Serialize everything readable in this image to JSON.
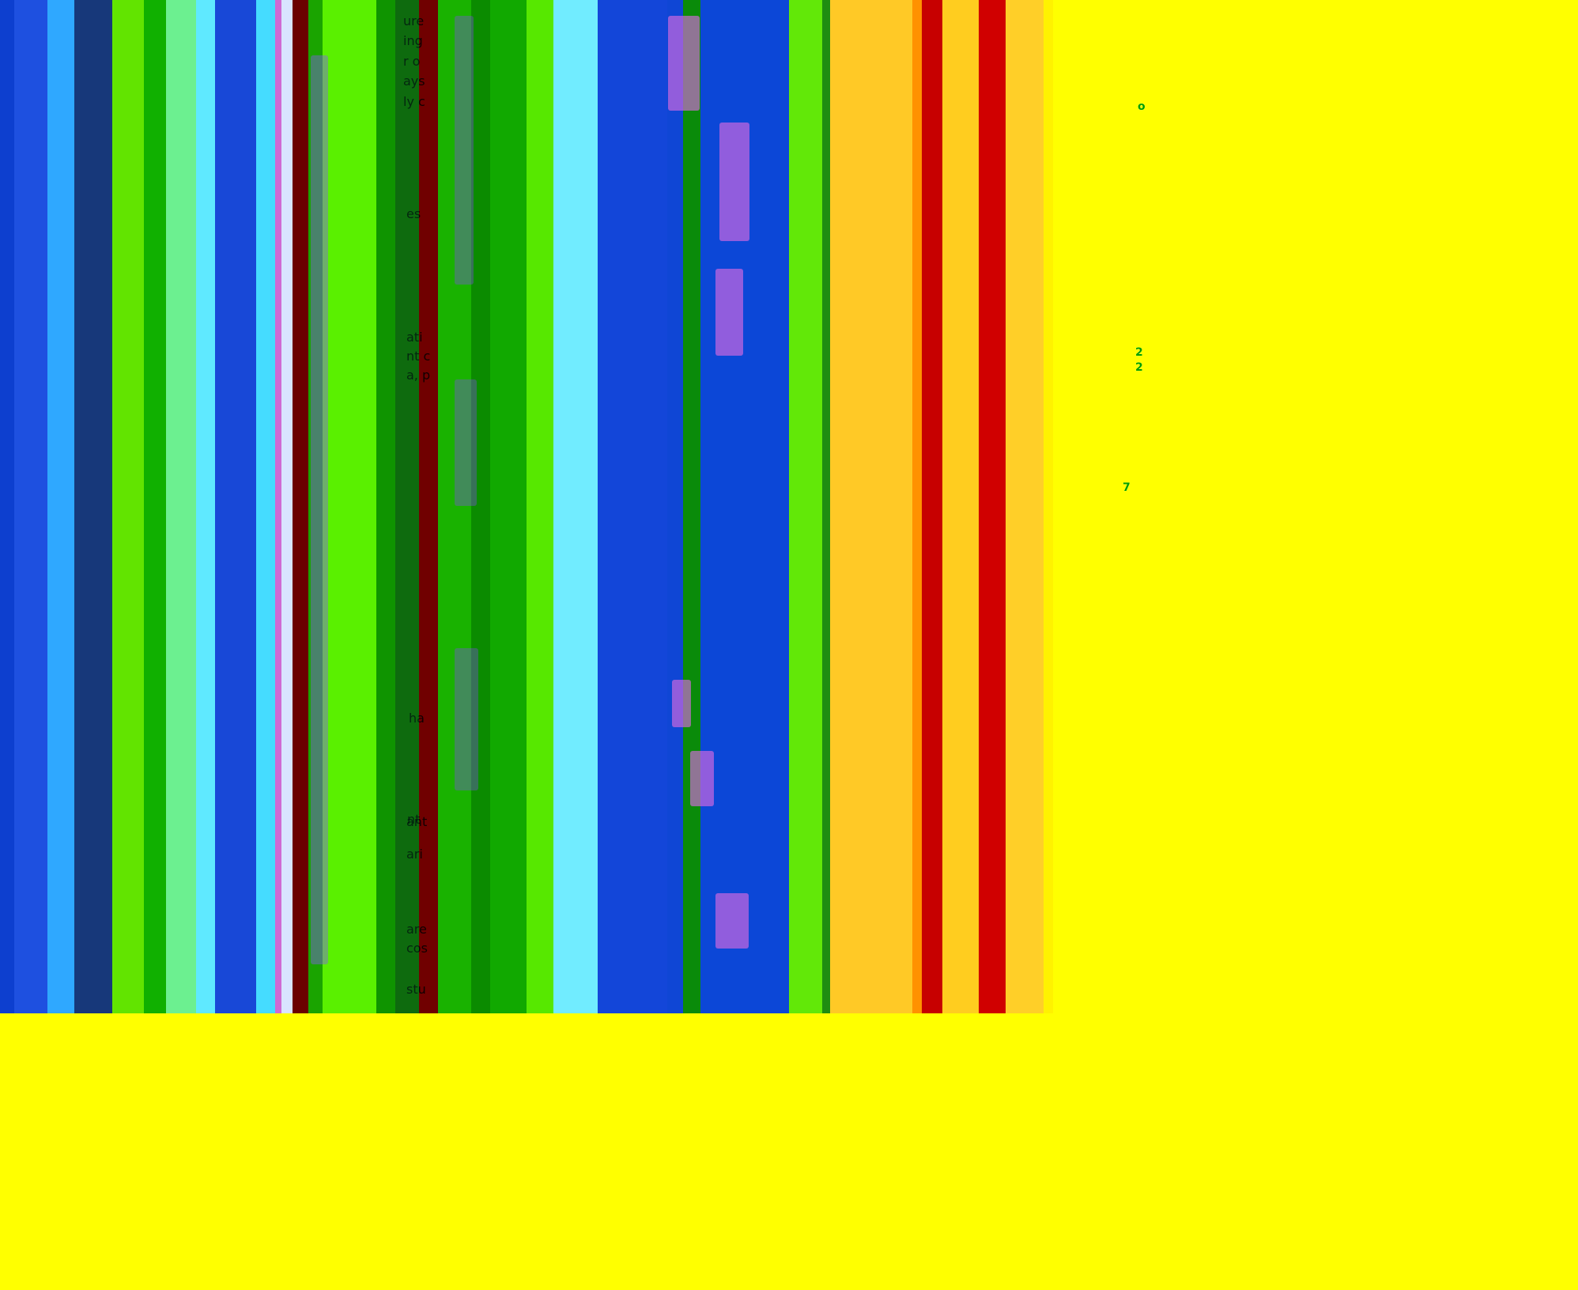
{
  "layers": {
    "bands": [
      {
        "name": "deep-blue",
        "color": "#0d3fcf"
      },
      {
        "name": "blue",
        "color": "#1e50e0"
      },
      {
        "name": "cyan-blue",
        "color": "#2fa8ff"
      },
      {
        "name": "navy",
        "color": "#17387a"
      },
      {
        "name": "lime",
        "color": "#62e400"
      },
      {
        "name": "green",
        "color": "#10b000"
      },
      {
        "name": "mint",
        "color": "#6cf090"
      },
      {
        "name": "cyan",
        "color": "#5fe9ff"
      },
      {
        "name": "blue-2",
        "color": "#1848d7"
      },
      {
        "name": "cyan-2",
        "color": "#45dcff"
      },
      {
        "name": "pink",
        "color": "#d06ad3"
      },
      {
        "name": "lavender",
        "color": "#d9e4ff"
      },
      {
        "name": "maroon",
        "color": "#6b0000"
      },
      {
        "name": "green-2",
        "color": "#1aa400"
      },
      {
        "name": "lime-2",
        "color": "#5af000"
      },
      {
        "name": "green-3",
        "color": "#0f9400"
      },
      {
        "name": "green-dark",
        "color": "#0e6b0e"
      },
      {
        "name": "maroon-2",
        "color": "#700000"
      },
      {
        "name": "green-4",
        "color": "#19b200"
      },
      {
        "name": "green-5",
        "color": "#0b8b00"
      },
      {
        "name": "green-6",
        "color": "#11a900"
      },
      {
        "name": "lime-3",
        "color": "#57e800"
      },
      {
        "name": "cyan-3",
        "color": "#71ecff"
      },
      {
        "name": "blue-3",
        "color": "#1346d9"
      },
      {
        "name": "blue-4",
        "color": "#0f46d5"
      },
      {
        "name": "green-7",
        "color": "#0a8b0a"
      },
      {
        "name": "blue-5",
        "color": "#0c47d7"
      },
      {
        "name": "lime-4",
        "color": "#62e808"
      },
      {
        "name": "green-8",
        "color": "#1f8d11"
      },
      {
        "name": "gold",
        "color": "#ffc926"
      },
      {
        "name": "orange",
        "color": "#ff9200"
      },
      {
        "name": "red",
        "color": "#c70000"
      },
      {
        "name": "gold-2",
        "color": "#ffcd1f"
      },
      {
        "name": "red-2",
        "color": "#d00000"
      },
      {
        "name": "gold-3",
        "color": "#ffcf28"
      },
      {
        "name": "yellow",
        "color": "#fff200"
      },
      {
        "name": "yellow-2",
        "color": "#ffff00"
      }
    ],
    "ghost_text": [
      {
        "name": "ghost-word-1",
        "text": "ure"
      },
      {
        "name": "ghost-word-2",
        "text": "ing"
      },
      {
        "name": "ghost-word-3",
        "text": "r o"
      },
      {
        "name": "ghost-word-4",
        "text": "ays"
      },
      {
        "name": "ghost-word-5",
        "text": "ly c"
      },
      {
        "name": "ghost-word-6",
        "text": "es"
      },
      {
        "name": "ghost-word-7",
        "text": "ati"
      },
      {
        "name": "ghost-word-8",
        "text": "nt c"
      },
      {
        "name": "ghost-word-9",
        "text": "a, p"
      },
      {
        "name": "ghost-word-10",
        "text": "nt"
      },
      {
        "name": "ghost-word-11",
        "text": "ha"
      },
      {
        "name": "ghost-word-12",
        "text": "ant"
      },
      {
        "name": "ghost-word-13",
        "text": "ari"
      },
      {
        "name": "ghost-word-14",
        "text": "are"
      },
      {
        "name": "ghost-word-15",
        "text": "cos"
      },
      {
        "name": "ghost-word-16",
        "text": "stu"
      }
    ],
    "side_glyphs": [
      {
        "name": "side-glyph-1",
        "text": "2"
      },
      {
        "name": "side-glyph-2",
        "text": "2"
      },
      {
        "name": "side-glyph-3",
        "text": "7"
      },
      {
        "name": "side-glyph-4",
        "text": "o"
      }
    ]
  }
}
